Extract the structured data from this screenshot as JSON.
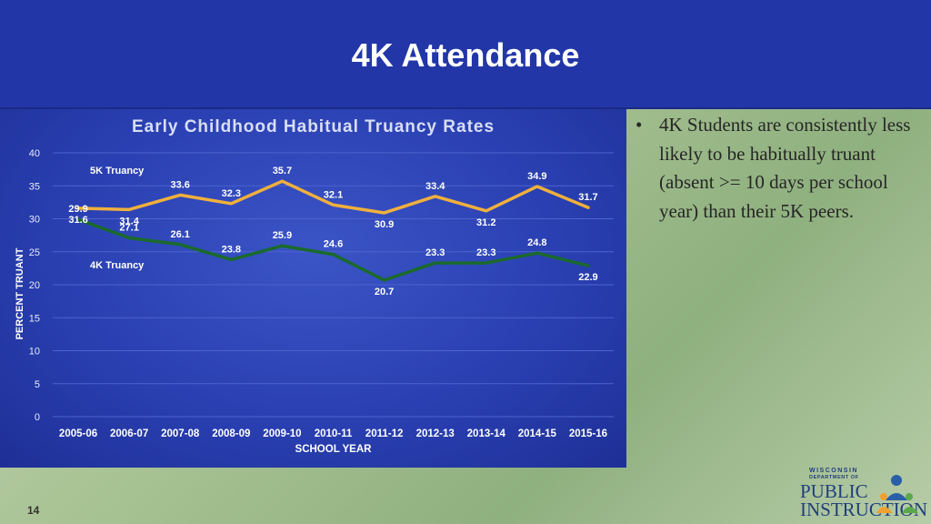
{
  "slide": {
    "title": "4K Attendance",
    "number": "14",
    "bullet": "4K Students are consistently less likely to be habitually truant (absent >= 10 days per school year) than their 5K peers.",
    "logo": {
      "line1": "WISCONSIN",
      "line2": "DEPARTMENT OF",
      "line3": "PUBLIC",
      "line4": "INSTRUCTION"
    }
  },
  "chart_data": {
    "type": "line",
    "title": "Early Childhood Habitual Truancy Rates",
    "xlabel": "SCHOOL YEAR",
    "ylabel": "PERCENT TRUANT",
    "ylim": [
      0,
      40
    ],
    "yticks": [
      0,
      5,
      10,
      15,
      20,
      25,
      30,
      35,
      40
    ],
    "grid": true,
    "categories": [
      "2005-06",
      "2006-07",
      "2007-08",
      "2008-09",
      "2009-10",
      "2010-11",
      "2011-12",
      "2012-13",
      "2013-14",
      "2014-15",
      "2015-16"
    ],
    "series": [
      {
        "name": "5K Truancy",
        "color": "#f0b03c",
        "values": [
          31.6,
          31.4,
          33.6,
          32.3,
          35.7,
          32.1,
          30.9,
          33.4,
          31.2,
          34.9,
          31.7
        ],
        "label_pos": [
          "below",
          "below",
          "above",
          "above",
          "above",
          "above",
          "below",
          "above",
          "below",
          "above",
          "above"
        ]
      },
      {
        "name": "4K Truancy",
        "color": "#1a6a2c",
        "values": [
          29.9,
          27.1,
          26.1,
          23.8,
          25.9,
          24.6,
          20.7,
          23.3,
          23.3,
          24.8,
          22.9
        ],
        "label_pos": [
          "above",
          "above",
          "above",
          "above",
          "above",
          "above",
          "below",
          "above",
          "above",
          "above",
          "below"
        ]
      }
    ]
  }
}
